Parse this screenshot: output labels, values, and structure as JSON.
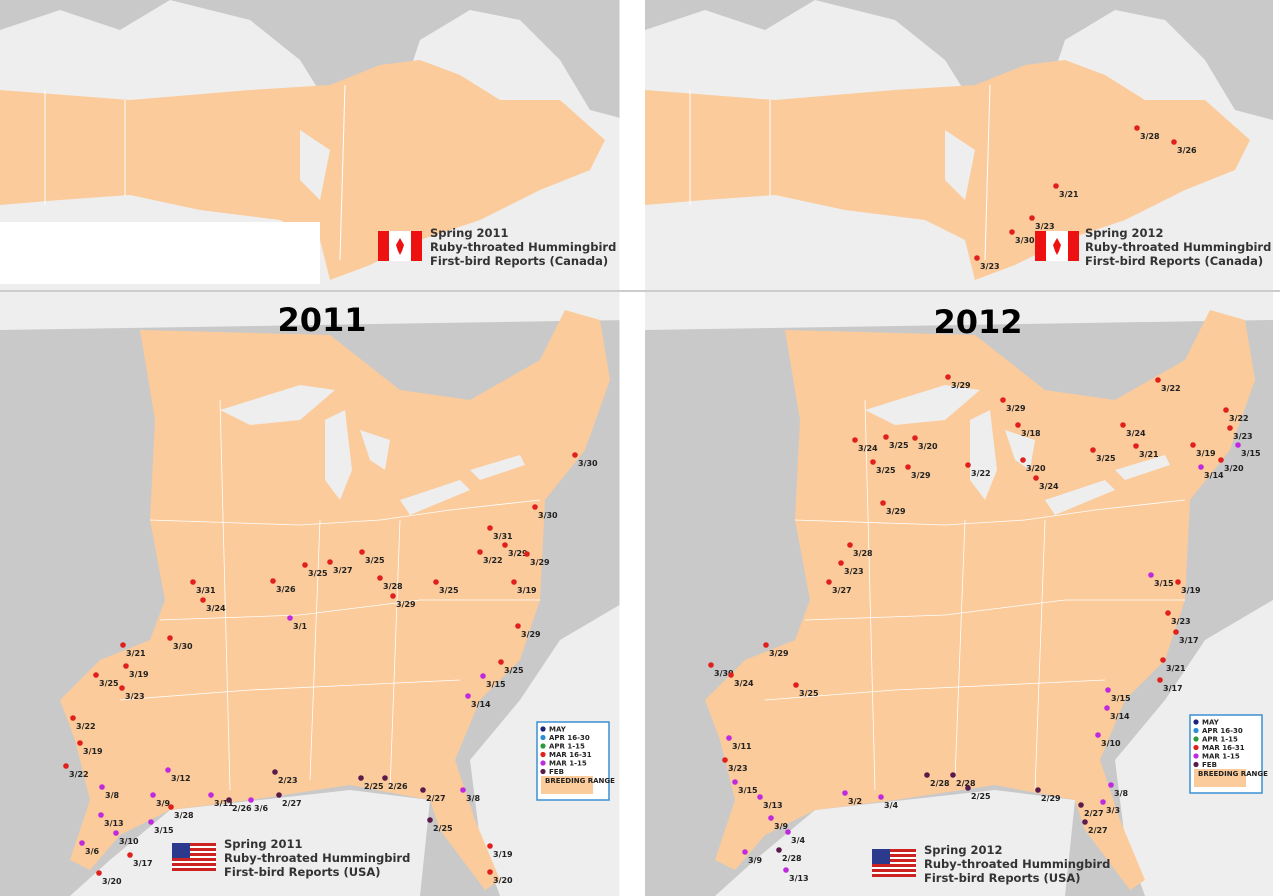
{
  "maps": [
    {
      "heading": "2011",
      "canada": {
        "caption": [
          "Spring 2011",
          "Ruby-throated Hummingbird",
          "First-bird Reports (Canada)"
        ],
        "reports": []
      },
      "usa": {
        "caption": [
          "Spring 2011",
          "Ruby-throated Hummingbird",
          "First-bird Reports (USA)"
        ],
        "reports": [
          {
            "date": "3/30",
            "period": "MAR 16-31"
          },
          {
            "date": "3/30",
            "period": "MAR 16-31"
          },
          {
            "date": "3/31",
            "period": "MAR 16-31"
          },
          {
            "date": "3/29",
            "period": "MAR 16-31"
          },
          {
            "date": "3/22",
            "period": "MAR 16-31"
          },
          {
            "date": "3/29",
            "period": "MAR 16-31"
          },
          {
            "date": "3/25",
            "period": "MAR 16-31"
          },
          {
            "date": "3/25",
            "period": "MAR 16-31"
          },
          {
            "date": "3/27",
            "period": "MAR 16-31"
          },
          {
            "date": "3/31",
            "period": "MAR 16-31"
          },
          {
            "date": "3/26",
            "period": "MAR 16-31"
          },
          {
            "date": "3/24",
            "period": "MAR 16-31"
          },
          {
            "date": "3/28",
            "period": "MAR 16-31"
          },
          {
            "date": "3/25",
            "period": "MAR 16-31"
          },
          {
            "date": "3/19",
            "period": "MAR 16-31"
          },
          {
            "date": "3/29",
            "period": "MAR 16-31"
          },
          {
            "date": "3/1",
            "period": "MAR 1-15"
          },
          {
            "date": "3/30",
            "period": "MAR 16-31"
          },
          {
            "date": "3/21",
            "period": "MAR 16-31"
          },
          {
            "date": "3/25",
            "period": "MAR 16-31"
          },
          {
            "date": "3/19",
            "period": "MAR 16-31"
          },
          {
            "date": "3/23",
            "period": "MAR 16-31"
          },
          {
            "date": "3/22",
            "period": "MAR 16-31"
          },
          {
            "date": "3/19",
            "period": "MAR 16-31"
          },
          {
            "date": "3/22",
            "period": "MAR 16-31"
          },
          {
            "date": "3/13",
            "period": "MAR 1-15"
          },
          {
            "date": "3/6",
            "period": "MAR 1-15"
          },
          {
            "date": "3/20",
            "period": "MAR 16-31"
          },
          {
            "date": "3/17",
            "period": "MAR 16-31"
          },
          {
            "date": "3/10",
            "period": "MAR 1-15"
          },
          {
            "date": "3/15",
            "period": "MAR 1-15"
          },
          {
            "date": "3/28",
            "period": "MAR 16-31"
          },
          {
            "date": "3/8",
            "period": "MAR 1-15"
          },
          {
            "date": "3/12",
            "period": "MAR 1-15"
          },
          {
            "date": "3/9",
            "period": "MAR 1-15"
          },
          {
            "date": "3/11",
            "period": "MAR 1-15"
          },
          {
            "date": "2/26",
            "period": "FEB"
          },
          {
            "date": "3/6",
            "period": "MAR 1-15"
          },
          {
            "date": "2/27",
            "period": "FEB"
          },
          {
            "date": "2/23",
            "period": "FEB"
          },
          {
            "date": "2/25",
            "period": "FEB"
          },
          {
            "date": "2/26",
            "period": "FEB"
          },
          {
            "date": "2/27",
            "period": "FEB"
          },
          {
            "date": "2/25",
            "period": "FEB"
          },
          {
            "date": "3/8",
            "period": "MAR 1-15"
          },
          {
            "date": "3/19",
            "period": "MAR 16-31"
          },
          {
            "date": "3/20",
            "period": "MAR 16-31"
          },
          {
            "date": "3/14",
            "period": "MAR 1-15"
          },
          {
            "date": "3/25",
            "period": "MAR 16-31"
          },
          {
            "date": "3/29",
            "period": "MAR 16-31"
          },
          {
            "date": "3/15",
            "period": "MAR 1-15"
          }
        ]
      }
    },
    {
      "heading": "2012",
      "canada": {
        "caption": [
          "Spring 2012",
          "Ruby-throated Hummingbird",
          "First-bird Reports (Canada)"
        ],
        "reports": [
          {
            "date": "3/28",
            "period": "MAR 16-31"
          },
          {
            "date": "3/26",
            "period": "MAR 16-31"
          },
          {
            "date": "3/21",
            "period": "MAR 16-31"
          },
          {
            "date": "3/23",
            "period": "MAR 16-31"
          },
          {
            "date": "3/30",
            "period": "MAR 16-31"
          },
          {
            "date": "3/23",
            "period": "MAR 16-31"
          }
        ]
      },
      "usa": {
        "caption": [
          "Spring 2012",
          "Ruby-throated Hummingbird",
          "First-bird Reports (USA)"
        ],
        "reports": [
          {
            "date": "3/29",
            "period": "MAR 16-31"
          },
          {
            "date": "3/22",
            "period": "MAR 16-31"
          },
          {
            "date": "3/29",
            "period": "MAR 16-31"
          },
          {
            "date": "3/18",
            "period": "MAR 16-31"
          },
          {
            "date": "3/24",
            "period": "MAR 16-31"
          },
          {
            "date": "3/25",
            "period": "MAR 16-31"
          },
          {
            "date": "3/20",
            "period": "MAR 16-31"
          },
          {
            "date": "3/25",
            "period": "MAR 16-31"
          },
          {
            "date": "3/29",
            "period": "MAR 16-31"
          },
          {
            "date": "3/24",
            "period": "MAR 16-31"
          },
          {
            "date": "3/22",
            "period": "MAR 16-31"
          },
          {
            "date": "3/23",
            "period": "MAR 16-31"
          },
          {
            "date": "3/15",
            "period": "MAR 1-15"
          },
          {
            "date": "3/19",
            "period": "MAR 16-31"
          },
          {
            "date": "3/20",
            "period": "MAR 16-31"
          },
          {
            "date": "3/14",
            "period": "MAR 1-15"
          },
          {
            "date": "3/25",
            "period": "MAR 16-31"
          },
          {
            "date": "3/21",
            "period": "MAR 16-31"
          },
          {
            "date": "3/20",
            "period": "MAR 16-31"
          },
          {
            "date": "3/24",
            "period": "MAR 16-31"
          },
          {
            "date": "3/22",
            "period": "MAR 16-31"
          },
          {
            "date": "3/29",
            "period": "MAR 16-31"
          },
          {
            "date": "3/28",
            "period": "MAR 16-31"
          },
          {
            "date": "3/23",
            "period": "MAR 16-31"
          },
          {
            "date": "3/27",
            "period": "MAR 16-31"
          },
          {
            "date": "3/15",
            "period": "MAR 1-15"
          },
          {
            "date": "3/19",
            "period": "MAR 16-31"
          },
          {
            "date": "3/23",
            "period": "MAR 16-31"
          },
          {
            "date": "3/17",
            "period": "MAR 16-31"
          },
          {
            "date": "3/29",
            "period": "MAR 16-31"
          },
          {
            "date": "3/30",
            "period": "MAR 16-31"
          },
          {
            "date": "3/24",
            "period": "MAR 16-31"
          },
          {
            "date": "3/25",
            "period": "MAR 16-31"
          },
          {
            "date": "3/11",
            "period": "MAR 1-15"
          },
          {
            "date": "3/23",
            "period": "MAR 16-31"
          },
          {
            "date": "3/15",
            "period": "MAR 1-15"
          },
          {
            "date": "3/13",
            "period": "MAR 1-15"
          },
          {
            "date": "3/9",
            "period": "MAR 1-15"
          },
          {
            "date": "3/4",
            "period": "MAR 1-15"
          },
          {
            "date": "2/28",
            "period": "FEB"
          },
          {
            "date": "3/13",
            "period": "MAR 1-15"
          },
          {
            "date": "3/9",
            "period": "MAR 1-15"
          },
          {
            "date": "2/28",
            "period": "FEB"
          },
          {
            "date": "2/28",
            "period": "FEB"
          },
          {
            "date": "2/25",
            "period": "FEB"
          },
          {
            "date": "2/29",
            "period": "FEB"
          },
          {
            "date": "2/27",
            "period": "FEB"
          },
          {
            "date": "2/27",
            "period": "FEB"
          },
          {
            "date": "3/3",
            "period": "MAR 1-15"
          },
          {
            "date": "3/8",
            "period": "MAR 1-15"
          },
          {
            "date": "3/14",
            "period": "MAR 1-15"
          },
          {
            "date": "3/10",
            "period": "MAR 1-15"
          },
          {
            "date": "3/15",
            "period": "MAR 1-15"
          },
          {
            "date": "3/21",
            "period": "MAR 16-31"
          },
          {
            "date": "3/17",
            "period": "MAR 16-31"
          },
          {
            "date": "3/4",
            "period": "MAR 1-15"
          },
          {
            "date": "3/2",
            "period": "MAR 1-15"
          }
        ]
      }
    }
  ],
  "legend": [
    {
      "label": "MAY",
      "color": "#1a237e"
    },
    {
      "label": "APR 16-30",
      "color": "#2a8fd6"
    },
    {
      "label": "APR 1-15",
      "color": "#2e9a3c"
    },
    {
      "label": "MAR 16-31",
      "color": "#e0201c"
    },
    {
      "label": "MAR 1-15",
      "color": "#c02adf"
    },
    {
      "label": "FEB",
      "color": "#5a1a4a"
    },
    {
      "label": "BREEDING RANGE",
      "color": "#fbcb9b"
    }
  ]
}
